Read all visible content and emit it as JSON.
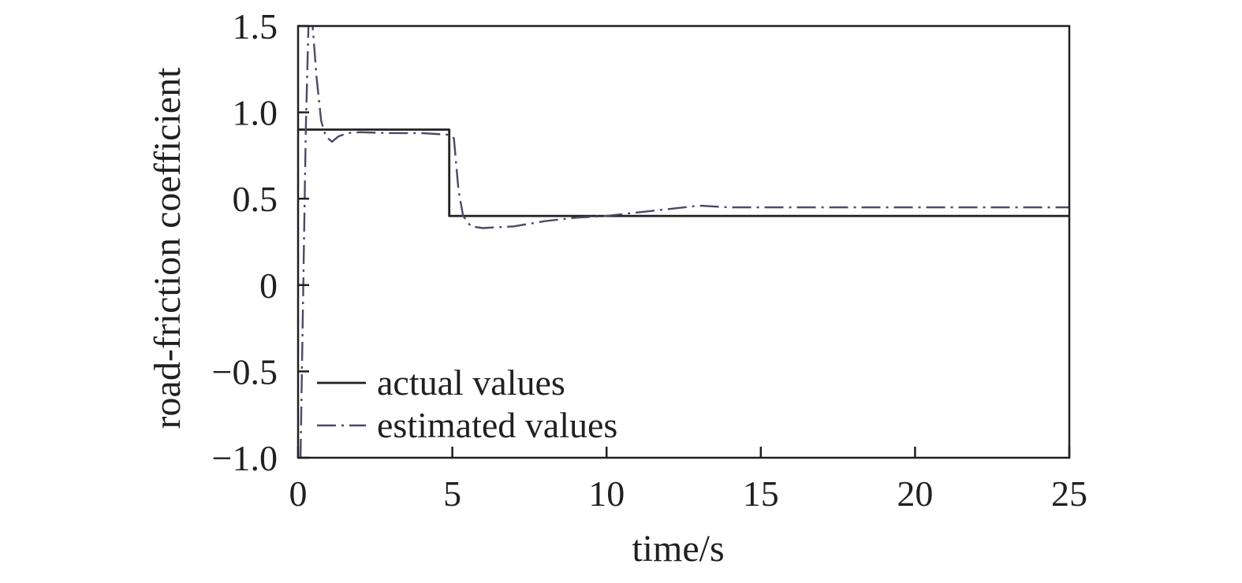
{
  "chart_data": {
    "type": "line",
    "title": "",
    "xlabel": "time/s",
    "ylabel": "road-friction coefficient",
    "xlim": [
      0,
      25
    ],
    "ylim": [
      -1.0,
      1.5
    ],
    "xticks": [
      0,
      5,
      10,
      15,
      20,
      25
    ],
    "xtick_labels": [
      "0",
      "5",
      "10",
      "15",
      "20",
      "25"
    ],
    "yticks": [
      -1.0,
      -0.5,
      0,
      0.5,
      1.0,
      1.5
    ],
    "ytick_labels": [
      "−1.0",
      "−0.5",
      "0",
      "0.5",
      "1.0",
      "1.5"
    ],
    "grid": false,
    "legend_position": "bottom-left",
    "series": [
      {
        "name": "actual values",
        "style": "solid",
        "color": "#231f20",
        "x": [
          0,
          4.9,
          4.9,
          25
        ],
        "y": [
          0.9,
          0.9,
          0.4,
          0.4
        ]
      },
      {
        "name": "estimated values",
        "style": "dash-dot",
        "color": "#4a4a6a",
        "x": [
          0.08,
          0.15,
          0.25,
          0.35,
          0.45,
          0.6,
          0.75,
          0.9,
          1.1,
          1.3,
          1.6,
          2.0,
          3.0,
          4.0,
          4.9,
          5.05,
          5.2,
          5.35,
          5.6,
          6.0,
          7.0,
          8.0,
          9.0,
          10.0,
          11.0,
          12.0,
          13.0,
          14.0,
          16.0,
          20.0,
          25.0
        ],
        "y": [
          -1.0,
          -0.2,
          0.9,
          1.6,
          1.55,
          1.2,
          0.95,
          0.86,
          0.83,
          0.86,
          0.88,
          0.885,
          0.88,
          0.88,
          0.87,
          0.85,
          0.55,
          0.4,
          0.34,
          0.33,
          0.34,
          0.37,
          0.39,
          0.4,
          0.42,
          0.44,
          0.46,
          0.45,
          0.45,
          0.45,
          0.45
        ]
      }
    ]
  }
}
